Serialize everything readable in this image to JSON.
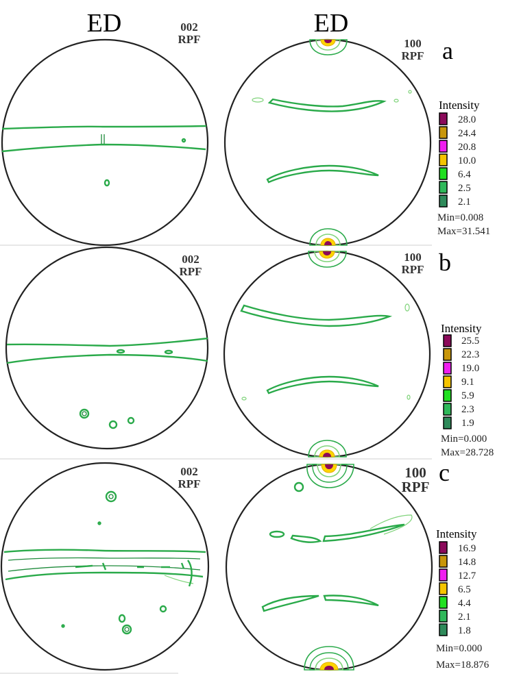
{
  "header": {
    "ed_left": "ED",
    "ed_right": "ED"
  },
  "rows": [
    {
      "letter": "a",
      "left_label": [
        "002",
        "RPF"
      ],
      "right_label": [
        "100",
        "RPF"
      ],
      "legend": {
        "title": "Intensity",
        "levels": [
          "28.0",
          "24.4",
          "20.8",
          "10.0",
          "6.4",
          "2.5",
          "2.1"
        ],
        "min": "Min=0.008",
        "max": "Max=31.541"
      }
    },
    {
      "letter": "b",
      "left_label": [
        "002",
        "RPF"
      ],
      "right_label": [
        "100",
        "RPF"
      ],
      "legend": {
        "title": "Intensity",
        "levels": [
          "25.5",
          "22.3",
          "19.0",
          "9.1",
          "5.9",
          "2.3",
          "1.9"
        ],
        "min": "Min=0.000",
        "max": "Max=28.728"
      }
    },
    {
      "letter": "c",
      "left_label": [
        "002",
        "RPF"
      ],
      "right_label": [
        "100",
        "RPF"
      ],
      "legend": {
        "title": "Intensity",
        "levels": [
          "16.9",
          "14.8",
          "12.7",
          "6.5",
          "4.4",
          "2.1",
          "1.8"
        ],
        "min": "Min=0.000",
        "max": "Max=18.876"
      }
    }
  ],
  "colors": {
    "legend_swatches": [
      "#8b0a5a",
      "#c8960a",
      "#f01ef0",
      "#f5c400",
      "#20e020",
      "#2fb85a",
      "#2e8a5a"
    ],
    "contour_green": "#2aaa4a"
  }
}
